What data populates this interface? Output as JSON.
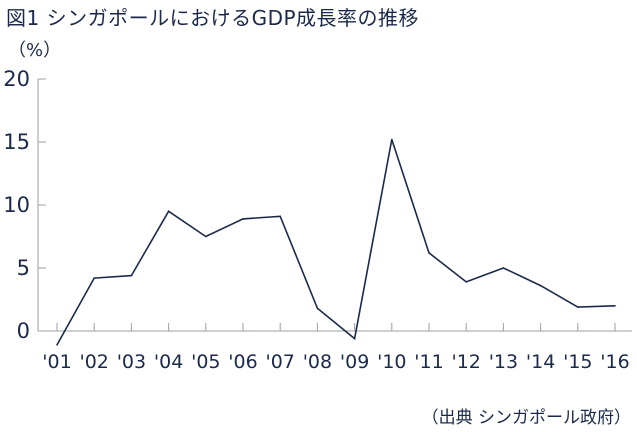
{
  "chart_data": {
    "type": "line",
    "title": "図1 シンガポールにおけるGDP成長率の推移",
    "unit_label": "（%）",
    "source": "（出典 シンガポール政府）",
    "categories": [
      "'01",
      "'02",
      "'03",
      "'04",
      "'05",
      "'06",
      "'07",
      "'08",
      "'09",
      "'10",
      "'11",
      "'12",
      "'13",
      "'14",
      "'15",
      "'16"
    ],
    "series": [
      {
        "values": [
          -1.1,
          4.2,
          4.4,
          9.5,
          7.5,
          8.9,
          9.1,
          1.8,
          -0.6,
          15.2,
          6.2,
          3.9,
          5.0,
          3.6,
          1.9,
          2.0
        ]
      }
    ],
    "yticks": [
      "0",
      "5",
      "10",
      "15",
      "20"
    ],
    "ylim": [
      0,
      20
    ],
    "grid": false,
    "colors": {
      "line": "#1b2a4a",
      "axis": "#9aa0a8",
      "text": "#1b2a4a"
    }
  }
}
